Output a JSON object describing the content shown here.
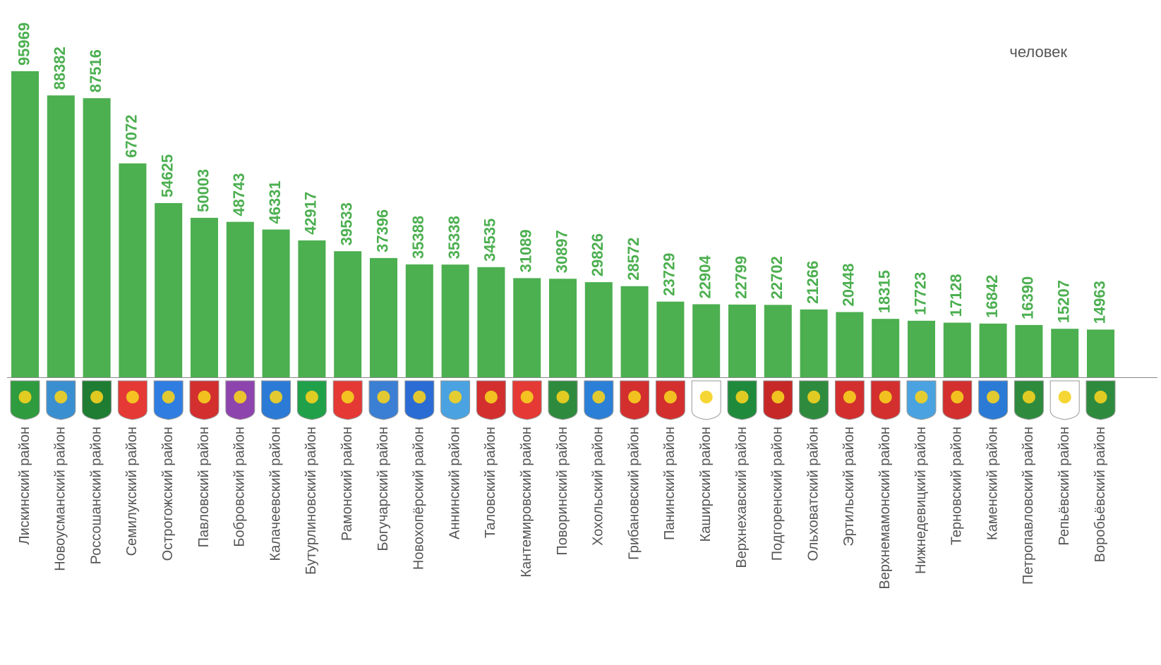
{
  "chart_data": {
    "type": "bar",
    "unit_label": "человек",
    "color": "#4caf50",
    "categories": [
      "Лискинский район",
      "Новоусманский район",
      "Россошанский район",
      "Семилукский район",
      "Острогожский район",
      "Павловский район",
      "Бобровский район",
      "Калачеевский район",
      "Бутурлиновский район",
      "Рамонский район",
      "Богучарский район",
      "Новохопёрский район",
      "Аннинский район",
      "Таловский район",
      "Кантемировский район",
      "Поворинский район",
      "Хохольский район",
      "Грибановский район",
      "Панинский район",
      "Каширский район",
      "Верхнехавский район",
      "Подгоренский район",
      "Ольховатский район",
      "Эртильский район",
      "Верхнемамонский район",
      "Нижнедевицкий район",
      "Терновский район",
      "Каменский район",
      "Петропавловский район",
      "Репьёвский район",
      "Воробьёвский район"
    ],
    "values": [
      95969,
      88382,
      87516,
      67072,
      54625,
      50003,
      48743,
      46331,
      42917,
      39533,
      37396,
      35388,
      35338,
      34535,
      31089,
      30897,
      29826,
      28572,
      23729,
      22904,
      22799,
      22702,
      21266,
      20448,
      18315,
      17723,
      17128,
      16842,
      16390,
      15207,
      14963
    ]
  }
}
